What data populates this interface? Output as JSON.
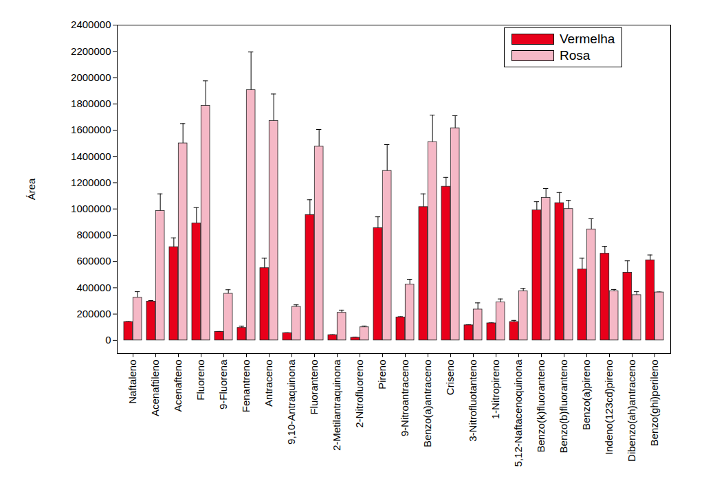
{
  "chart_data": {
    "type": "bar",
    "categories": [
      "Naftaleno",
      "Acenaftileno",
      "Acenafteno",
      "Fluoreno",
      "9-Fluorena",
      "Fenantreno",
      "Antraceno",
      "9,10-Antraquinona",
      "Fluoranteno",
      "2-Metilantraquinona",
      "2-Nitrofluoreno",
      "Pireno",
      "9-Nitroantraceno",
      "Benzo(a)antraceno",
      "Criseno",
      "3-Nitrofluotanteno",
      "1-Nitropireno",
      "5,12-Naftacenoquinona",
      "Benzo(k)fluoranteno",
      "Benzo(b)fluoranteno",
      "Benzo(a)pireno",
      "Indeno(123cd)pireno",
      "Dibenzo(ah)antraceno",
      "Benzo(ghi)perileno"
    ],
    "series": [
      {
        "name": "Vermelha",
        "color": "#e8001a",
        "values": [
          140000,
          295000,
          710000,
          890000,
          65000,
          95000,
          550000,
          55000,
          955000,
          40000,
          20000,
          855000,
          175000,
          1015000,
          1170000,
          115000,
          130000,
          140000,
          990000,
          1045000,
          540000,
          660000,
          515000,
          610000
        ],
        "errors": [
          3000,
          8000,
          70000,
          120000,
          3000,
          12000,
          75000,
          3000,
          115000,
          3000,
          3000,
          85000,
          5000,
          100000,
          70000,
          3000,
          3000,
          12000,
          65000,
          80000,
          85000,
          55000,
          90000,
          40000
        ]
      },
      {
        "name": "Rosa",
        "color": "#f5b8c6",
        "values": [
          325000,
          985000,
          1500000,
          1785000,
          355000,
          1905000,
          1670000,
          255000,
          1475000,
          210000,
          100000,
          1290000,
          425000,
          1510000,
          1615000,
          235000,
          290000,
          375000,
          1085000,
          1000000,
          845000,
          375000,
          345000,
          365000
        ],
        "errors": [
          45000,
          130000,
          150000,
          190000,
          30000,
          290000,
          205000,
          15000,
          130000,
          20000,
          8000,
          200000,
          40000,
          205000,
          95000,
          50000,
          25000,
          20000,
          70000,
          65000,
          80000,
          12000,
          25000,
          3000
        ]
      }
    ],
    "y_label": "Área",
    "ylim": [
      -100000,
      2400000
    ],
    "yticks": [
      0,
      200000,
      400000,
      600000,
      800000,
      1000000,
      1200000,
      1400000,
      1600000,
      1800000,
      2000000,
      2200000,
      2400000
    ],
    "grid": false,
    "legend": "top-right"
  }
}
